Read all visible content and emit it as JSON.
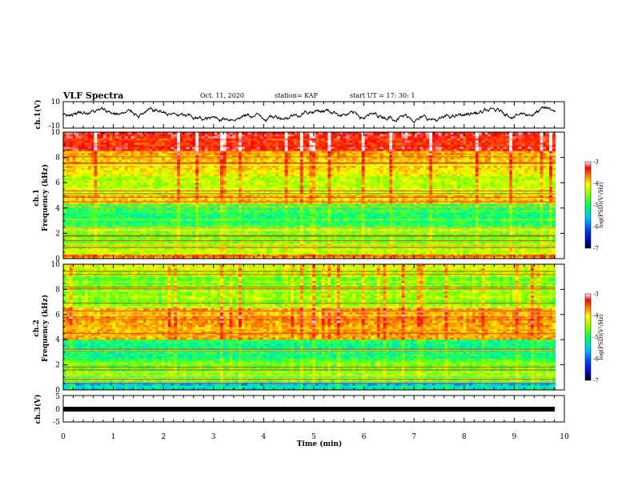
{
  "header": {
    "title": "VLF Spectra",
    "date": "Oct. 11, 2020",
    "station": "station= KAP",
    "start": "start  UT =   17: 30: 1"
  },
  "chart_data": [
    {
      "type": "line",
      "panel": "ch1-waveform",
      "ylabel": "ch.1(V)",
      "ylim": [
        -10,
        10
      ],
      "ytick_labels": [
        "10",
        "-10"
      ],
      "xlim": [
        0,
        10
      ],
      "x_extent": [
        0,
        9.82
      ],
      "line_color": "#000000"
    },
    {
      "type": "heatmap",
      "panel": "ch1-spectrogram",
      "ylabel": "ch.1\nFrequency (kHz)",
      "ylim": [
        0,
        10
      ],
      "ytick_labels": [
        "0",
        "2",
        "4",
        "6",
        "8",
        "10"
      ],
      "xlim": [
        0,
        10
      ],
      "x_extent": [
        0,
        9.82
      ],
      "colorbar": {
        "label": "log(PSD)(V²/Hz)",
        "range": [
          -7,
          -3
        ],
        "tick_labels": [
          "-3",
          "-4",
          "-5",
          "-6",
          "-7"
        ]
      }
    },
    {
      "type": "heatmap",
      "panel": "ch2-spectrogram",
      "ylabel": "ch.2\nFrequency (kHz)",
      "ylim": [
        0,
        10
      ],
      "ytick_labels": [
        "0",
        "2",
        "4",
        "6",
        "8",
        "10"
      ],
      "xlim": [
        0,
        10
      ],
      "x_extent": [
        0,
        9.82
      ],
      "colorbar": {
        "label": "log(PSD)(V²/Hz)",
        "range": [
          -7,
          -3
        ],
        "tick_labels": [
          "-3",
          "-4",
          "-5",
          "-6",
          "-7"
        ]
      }
    },
    {
      "type": "line",
      "panel": "ch3-waveform",
      "ylabel": "ch.3(V)",
      "ylim": [
        -5,
        5
      ],
      "ytick_labels": [
        "5",
        "0",
        "-5"
      ],
      "xlim": [
        0,
        10
      ],
      "x_extent": [
        0,
        9.82
      ],
      "xlabel": "Time (min)",
      "xtick_labels": [
        "0",
        "1",
        "2",
        "3",
        "4",
        "5",
        "6",
        "7",
        "8",
        "9",
        "10"
      ],
      "line_color": "#000000"
    }
  ],
  "colors": {
    "colormap": [
      "#000080",
      "#0000ff",
      "#00bfff",
      "#00ff80",
      "#80ff00",
      "#ffff00",
      "#ff8000",
      "#ff0000",
      "#ffffff"
    ],
    "frame": "#000000"
  }
}
